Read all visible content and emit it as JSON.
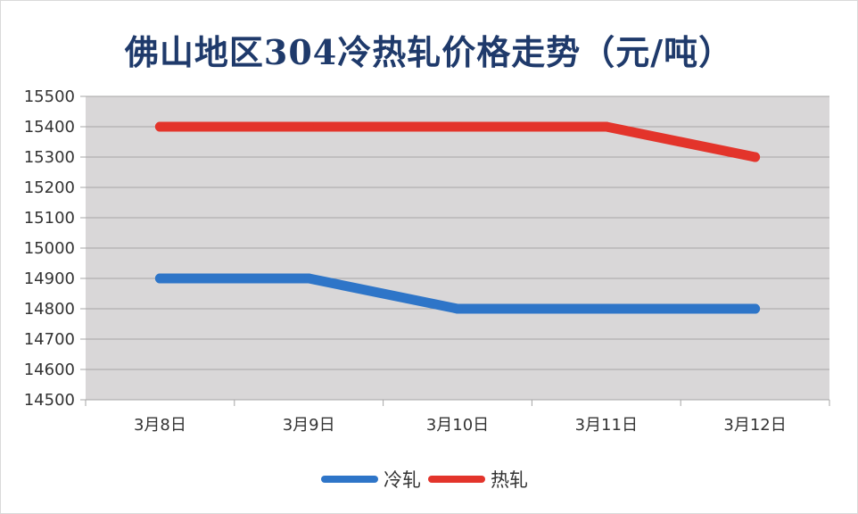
{
  "chart_data": {
    "type": "line",
    "title": "佛山地区304冷热轧价格走势（元/吨）",
    "categories": [
      "3月8日",
      "3月9日",
      "3月10日",
      "3月11日",
      "3月12日"
    ],
    "series": [
      {
        "name": "冷轧",
        "color": "#2e75c8",
        "values": [
          14900,
          14900,
          14800,
          14800,
          14800
        ]
      },
      {
        "name": "热轧",
        "color": "#e3342b",
        "values": [
          15400,
          15400,
          15400,
          15400,
          15300
        ]
      }
    ],
    "ylim": [
      14500,
      15500
    ],
    "yticks": [
      14500,
      14600,
      14700,
      14800,
      14900,
      15000,
      15100,
      15200,
      15300,
      15400,
      15500
    ],
    "grid": true,
    "legend_position": "bottom",
    "plot_background": "#d9d7d8"
  }
}
